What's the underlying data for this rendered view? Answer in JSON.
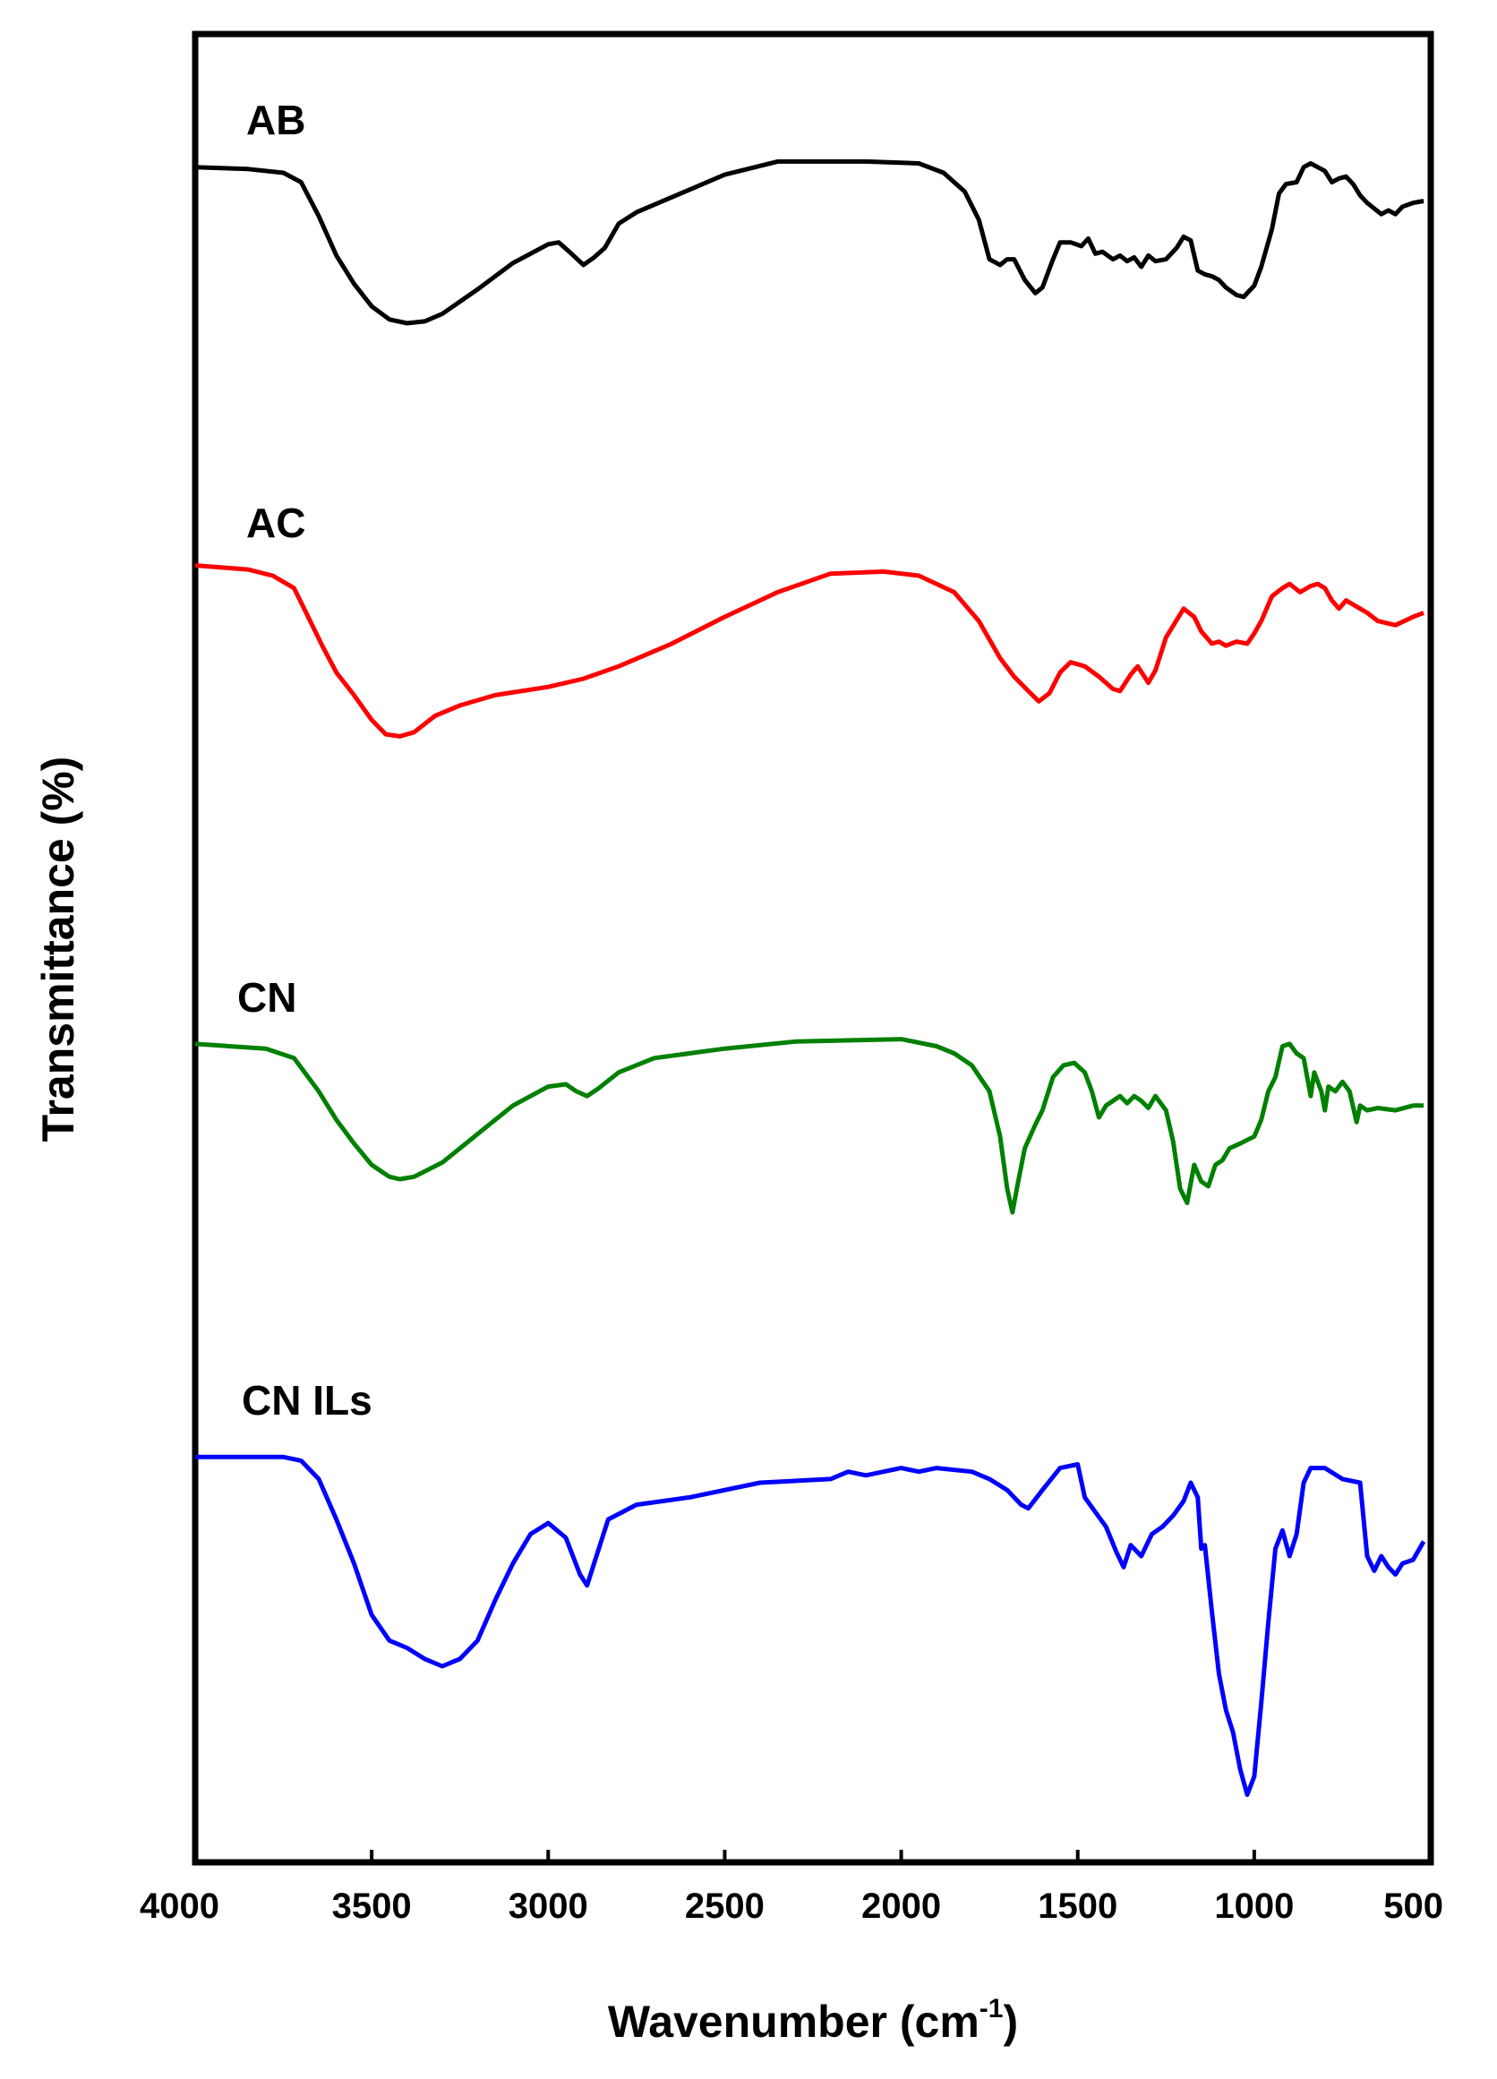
{
  "chart_data": {
    "type": "line",
    "title": "",
    "xlabel": "Wavenumber (cm",
    "xlabel_sup": "-1",
    "xlabel_close": ")",
    "ylabel": "Transmittance (%)",
    "xlim": [
      4000,
      500
    ],
    "x_reversed": true,
    "y_ticks_shown": false,
    "grid": false,
    "legend": "inline labels above each curve",
    "x_ticks": [
      4000,
      3500,
      3000,
      2500,
      2000,
      1500,
      1000,
      500
    ],
    "x_tick_labels": [
      "4000",
      "3500",
      "3000",
      "2500",
      "2000",
      "1500",
      "1000",
      "500"
    ],
    "series": [
      {
        "name": "AB",
        "color": "#000000",
        "points": [
          [
            4000,
            0.93
          ],
          [
            3850,
            0.92
          ],
          [
            3750,
            0.9
          ],
          [
            3700,
            0.85
          ],
          [
            3650,
            0.67
          ],
          [
            3600,
            0.46
          ],
          [
            3550,
            0.31
          ],
          [
            3500,
            0.19
          ],
          [
            3450,
            0.12
          ],
          [
            3400,
            0.1
          ],
          [
            3350,
            0.11
          ],
          [
            3300,
            0.15
          ],
          [
            3200,
            0.28
          ],
          [
            3100,
            0.42
          ],
          [
            3000,
            0.52
          ],
          [
            2970,
            0.53
          ],
          [
            2940,
            0.48
          ],
          [
            2900,
            0.41
          ],
          [
            2870,
            0.45
          ],
          [
            2840,
            0.5
          ],
          [
            2800,
            0.63
          ],
          [
            2750,
            0.69
          ],
          [
            2600,
            0.81
          ],
          [
            2500,
            0.89
          ],
          [
            2350,
            0.96
          ],
          [
            2100,
            0.96
          ],
          [
            1950,
            0.95
          ],
          [
            1880,
            0.9
          ],
          [
            1820,
            0.8
          ],
          [
            1780,
            0.65
          ],
          [
            1750,
            0.44
          ],
          [
            1720,
            0.41
          ],
          [
            1700,
            0.44
          ],
          [
            1680,
            0.44
          ],
          [
            1650,
            0.33
          ],
          [
            1620,
            0.26
          ],
          [
            1600,
            0.29
          ],
          [
            1570,
            0.44
          ],
          [
            1550,
            0.53
          ],
          [
            1520,
            0.53
          ],
          [
            1490,
            0.51
          ],
          [
            1470,
            0.55
          ],
          [
            1450,
            0.47
          ],
          [
            1430,
            0.48
          ],
          [
            1400,
            0.44
          ],
          [
            1380,
            0.46
          ],
          [
            1360,
            0.43
          ],
          [
            1340,
            0.45
          ],
          [
            1320,
            0.4
          ],
          [
            1300,
            0.46
          ],
          [
            1280,
            0.43
          ],
          [
            1250,
            0.44
          ],
          [
            1220,
            0.5
          ],
          [
            1200,
            0.56
          ],
          [
            1180,
            0.54
          ],
          [
            1160,
            0.38
          ],
          [
            1140,
            0.36
          ],
          [
            1120,
            0.35
          ],
          [
            1100,
            0.33
          ],
          [
            1080,
            0.29
          ],
          [
            1050,
            0.25
          ],
          [
            1030,
            0.24
          ],
          [
            1000,
            0.3
          ],
          [
            980,
            0.4
          ],
          [
            950,
            0.6
          ],
          [
            930,
            0.79
          ],
          [
            910,
            0.84
          ],
          [
            880,
            0.85
          ],
          [
            860,
            0.93
          ],
          [
            840,
            0.95
          ],
          [
            820,
            0.93
          ],
          [
            800,
            0.91
          ],
          [
            780,
            0.85
          ],
          [
            760,
            0.87
          ],
          [
            740,
            0.88
          ],
          [
            720,
            0.84
          ],
          [
            700,
            0.78
          ],
          [
            680,
            0.74
          ],
          [
            660,
            0.71
          ],
          [
            640,
            0.68
          ],
          [
            620,
            0.7
          ],
          [
            600,
            0.68
          ],
          [
            580,
            0.72
          ],
          [
            550,
            0.74
          ],
          [
            520,
            0.75
          ]
        ]
      },
      {
        "name": "AC",
        "color": "#ff0000",
        "points": [
          [
            4000,
            0.95
          ],
          [
            3850,
            0.93
          ],
          [
            3780,
            0.9
          ],
          [
            3720,
            0.84
          ],
          [
            3680,
            0.7
          ],
          [
            3640,
            0.56
          ],
          [
            3600,
            0.43
          ],
          [
            3550,
            0.32
          ],
          [
            3500,
            0.2
          ],
          [
            3460,
            0.13
          ],
          [
            3420,
            0.12
          ],
          [
            3380,
            0.14
          ],
          [
            3320,
            0.22
          ],
          [
            3250,
            0.27
          ],
          [
            3150,
            0.32
          ],
          [
            3000,
            0.36
          ],
          [
            2900,
            0.4
          ],
          [
            2800,
            0.46
          ],
          [
            2650,
            0.57
          ],
          [
            2500,
            0.7
          ],
          [
            2350,
            0.82
          ],
          [
            2200,
            0.91
          ],
          [
            2050,
            0.92
          ],
          [
            1950,
            0.9
          ],
          [
            1850,
            0.82
          ],
          [
            1780,
            0.68
          ],
          [
            1720,
            0.5
          ],
          [
            1680,
            0.41
          ],
          [
            1640,
            0.34
          ],
          [
            1610,
            0.29
          ],
          [
            1580,
            0.33
          ],
          [
            1550,
            0.43
          ],
          [
            1520,
            0.48
          ],
          [
            1480,
            0.46
          ],
          [
            1440,
            0.41
          ],
          [
            1400,
            0.35
          ],
          [
            1380,
            0.34
          ],
          [
            1350,
            0.42
          ],
          [
            1330,
            0.46
          ],
          [
            1300,
            0.38
          ],
          [
            1280,
            0.44
          ],
          [
            1250,
            0.6
          ],
          [
            1200,
            0.74
          ],
          [
            1170,
            0.7
          ],
          [
            1150,
            0.63
          ],
          [
            1120,
            0.57
          ],
          [
            1100,
            0.58
          ],
          [
            1080,
            0.56
          ],
          [
            1050,
            0.58
          ],
          [
            1020,
            0.57
          ],
          [
            1000,
            0.62
          ],
          [
            980,
            0.68
          ],
          [
            950,
            0.8
          ],
          [
            920,
            0.84
          ],
          [
            900,
            0.86
          ],
          [
            870,
            0.82
          ],
          [
            840,
            0.85
          ],
          [
            820,
            0.86
          ],
          [
            800,
            0.84
          ],
          [
            780,
            0.78
          ],
          [
            760,
            0.74
          ],
          [
            740,
            0.78
          ],
          [
            720,
            0.76
          ],
          [
            680,
            0.72
          ],
          [
            650,
            0.68
          ],
          [
            600,
            0.66
          ],
          [
            550,
            0.7
          ],
          [
            520,
            0.72
          ]
        ]
      },
      {
        "name": "CN",
        "color": "#008000",
        "points": [
          [
            4000,
            0.94
          ],
          [
            3800,
            0.92
          ],
          [
            3720,
            0.88
          ],
          [
            3650,
            0.74
          ],
          [
            3600,
            0.62
          ],
          [
            3550,
            0.52
          ],
          [
            3500,
            0.43
          ],
          [
            3450,
            0.38
          ],
          [
            3420,
            0.37
          ],
          [
            3380,
            0.38
          ],
          [
            3300,
            0.44
          ],
          [
            3200,
            0.56
          ],
          [
            3100,
            0.68
          ],
          [
            3000,
            0.76
          ],
          [
            2950,
            0.77
          ],
          [
            2920,
            0.74
          ],
          [
            2890,
            0.72
          ],
          [
            2860,
            0.75
          ],
          [
            2800,
            0.82
          ],
          [
            2700,
            0.88
          ],
          [
            2500,
            0.92
          ],
          [
            2300,
            0.95
          ],
          [
            2000,
            0.96
          ],
          [
            1900,
            0.93
          ],
          [
            1850,
            0.9
          ],
          [
            1800,
            0.85
          ],
          [
            1750,
            0.74
          ],
          [
            1720,
            0.55
          ],
          [
            1700,
            0.33
          ],
          [
            1685,
            0.23
          ],
          [
            1670,
            0.35
          ],
          [
            1650,
            0.5
          ],
          [
            1620,
            0.6
          ],
          [
            1600,
            0.66
          ],
          [
            1570,
            0.8
          ],
          [
            1540,
            0.85
          ],
          [
            1510,
            0.86
          ],
          [
            1480,
            0.82
          ],
          [
            1460,
            0.74
          ],
          [
            1440,
            0.63
          ],
          [
            1420,
            0.68
          ],
          [
            1400,
            0.7
          ],
          [
            1380,
            0.72
          ],
          [
            1360,
            0.69
          ],
          [
            1340,
            0.72
          ],
          [
            1320,
            0.7
          ],
          [
            1300,
            0.67
          ],
          [
            1280,
            0.72
          ],
          [
            1250,
            0.66
          ],
          [
            1230,
            0.53
          ],
          [
            1210,
            0.33
          ],
          [
            1190,
            0.27
          ],
          [
            1170,
            0.43
          ],
          [
            1150,
            0.36
          ],
          [
            1130,
            0.34
          ],
          [
            1110,
            0.43
          ],
          [
            1090,
            0.45
          ],
          [
            1070,
            0.5
          ],
          [
            1040,
            0.52
          ],
          [
            1000,
            0.55
          ],
          [
            980,
            0.62
          ],
          [
            960,
            0.74
          ],
          [
            940,
            0.8
          ],
          [
            920,
            0.93
          ],
          [
            900,
            0.94
          ],
          [
            880,
            0.9
          ],
          [
            860,
            0.88
          ],
          [
            840,
            0.72
          ],
          [
            830,
            0.82
          ],
          [
            810,
            0.74
          ],
          [
            800,
            0.66
          ],
          [
            790,
            0.76
          ],
          [
            770,
            0.74
          ],
          [
            750,
            0.78
          ],
          [
            730,
            0.74
          ],
          [
            710,
            0.61
          ],
          [
            700,
            0.68
          ],
          [
            680,
            0.66
          ],
          [
            650,
            0.67
          ],
          [
            600,
            0.66
          ],
          [
            550,
            0.68
          ],
          [
            520,
            0.68
          ]
        ]
      },
      {
        "name": "CN ILs",
        "color": "#0000ff",
        "points": [
          [
            4000,
            0.97
          ],
          [
            3750,
            0.97
          ],
          [
            3700,
            0.96
          ],
          [
            3650,
            0.91
          ],
          [
            3600,
            0.8
          ],
          [
            3550,
            0.68
          ],
          [
            3500,
            0.54
          ],
          [
            3450,
            0.47
          ],
          [
            3400,
            0.45
          ],
          [
            3350,
            0.42
          ],
          [
            3300,
            0.4
          ],
          [
            3250,
            0.42
          ],
          [
            3200,
            0.47
          ],
          [
            3150,
            0.58
          ],
          [
            3100,
            0.68
          ],
          [
            3050,
            0.76
          ],
          [
            3000,
            0.79
          ],
          [
            2950,
            0.75
          ],
          [
            2910,
            0.65
          ],
          [
            2890,
            0.62
          ],
          [
            2870,
            0.68
          ],
          [
            2830,
            0.8
          ],
          [
            2750,
            0.84
          ],
          [
            2600,
            0.86
          ],
          [
            2400,
            0.9
          ],
          [
            2200,
            0.91
          ],
          [
            2150,
            0.93
          ],
          [
            2100,
            0.92
          ],
          [
            2050,
            0.93
          ],
          [
            2000,
            0.94
          ],
          [
            1950,
            0.93
          ],
          [
            1900,
            0.94
          ],
          [
            1800,
            0.93
          ],
          [
            1750,
            0.91
          ],
          [
            1700,
            0.88
          ],
          [
            1660,
            0.84
          ],
          [
            1640,
            0.83
          ],
          [
            1600,
            0.88
          ],
          [
            1550,
            0.94
          ],
          [
            1500,
            0.95
          ],
          [
            1480,
            0.86
          ],
          [
            1450,
            0.82
          ],
          [
            1420,
            0.78
          ],
          [
            1390,
            0.71
          ],
          [
            1370,
            0.67
          ],
          [
            1350,
            0.73
          ],
          [
            1320,
            0.7
          ],
          [
            1290,
            0.76
          ],
          [
            1260,
            0.78
          ],
          [
            1230,
            0.81
          ],
          [
            1200,
            0.85
          ],
          [
            1180,
            0.9
          ],
          [
            1160,
            0.86
          ],
          [
            1150,
            0.72
          ],
          [
            1140,
            0.73
          ],
          [
            1120,
            0.55
          ],
          [
            1100,
            0.38
          ],
          [
            1080,
            0.28
          ],
          [
            1060,
            0.22
          ],
          [
            1040,
            0.12
          ],
          [
            1020,
            0.05
          ],
          [
            1000,
            0.1
          ],
          [
            980,
            0.3
          ],
          [
            960,
            0.52
          ],
          [
            940,
            0.72
          ],
          [
            920,
            0.77
          ],
          [
            900,
            0.7
          ],
          [
            880,
            0.76
          ],
          [
            860,
            0.9
          ],
          [
            840,
            0.94
          ],
          [
            800,
            0.94
          ],
          [
            750,
            0.91
          ],
          [
            700,
            0.9
          ],
          [
            680,
            0.7
          ],
          [
            660,
            0.66
          ],
          [
            640,
            0.7
          ],
          [
            620,
            0.67
          ],
          [
            600,
            0.65
          ],
          [
            580,
            0.68
          ],
          [
            550,
            0.69
          ],
          [
            520,
            0.74
          ]
        ]
      }
    ]
  }
}
